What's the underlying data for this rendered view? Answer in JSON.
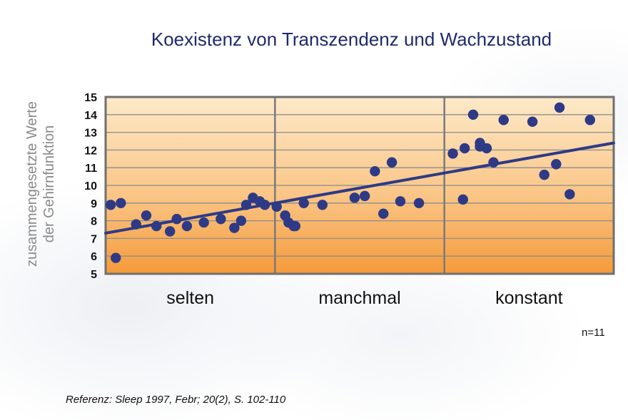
{
  "chart_data": {
    "type": "scatter",
    "title": "Koexistenz von Transzendenz und Wachzustand",
    "ylabel": [
      "zusammengesetzte Werte",
      "der Gehirnfunktion"
    ],
    "xlabel": "",
    "ylim": [
      5,
      15
    ],
    "yticks": [
      5,
      6,
      7,
      8,
      9,
      10,
      11,
      12,
      13,
      14,
      15
    ],
    "categories": [
      "selten",
      "manchmal",
      "konstant"
    ],
    "grid": true,
    "background": "orange-gradient",
    "point_color": "#2e3a86",
    "line_color": "#2e3a86",
    "series": [
      {
        "values": [
          [
            0.03,
            8.9
          ],
          [
            0.06,
            5.9
          ],
          [
            0.09,
            9.0
          ],
          [
            0.18,
            7.8
          ],
          [
            0.24,
            8.3
          ],
          [
            0.3,
            7.7
          ],
          [
            0.38,
            7.4
          ],
          [
            0.42,
            8.1
          ],
          [
            0.48,
            7.7
          ],
          [
            0.58,
            7.9
          ],
          [
            0.68,
            8.1
          ],
          [
            0.76,
            7.6
          ],
          [
            0.8,
            8.0
          ],
          [
            0.83,
            8.9
          ],
          [
            0.87,
            9.3
          ],
          [
            0.91,
            9.1
          ],
          [
            0.94,
            8.9
          ],
          [
            1.01,
            8.8
          ],
          [
            1.06,
            8.3
          ],
          [
            1.08,
            7.9
          ],
          [
            1.11,
            7.7
          ]
        ]
      },
      {
        "values": [
          [
            0.12,
            7.7
          ],
          [
            0.17,
            9.0
          ],
          [
            0.28,
            8.9
          ],
          [
            0.47,
            9.3
          ],
          [
            0.53,
            9.4
          ],
          [
            0.59,
            10.8
          ],
          [
            0.64,
            8.4
          ],
          [
            0.69,
            11.3
          ],
          [
            0.74,
            9.1
          ],
          [
            0.85,
            9.0
          ],
          [
            1.05,
            11.8
          ],
          [
            1.11,
            9.2
          ],
          [
            1.21,
            12.2
          ]
        ]
      },
      {
        "values": [
          [
            0.12,
            12.1
          ],
          [
            0.17,
            14.0
          ],
          [
            0.21,
            12.4
          ],
          [
            0.25,
            12.1
          ],
          [
            0.29,
            11.3
          ],
          [
            0.35,
            13.7
          ],
          [
            0.52,
            13.6
          ],
          [
            0.59,
            10.6
          ],
          [
            0.66,
            11.2
          ],
          [
            0.68,
            14.4
          ],
          [
            0.74,
            9.5
          ],
          [
            0.86,
            13.7
          ]
        ]
      }
    ],
    "trendline": {
      "from": [
        0.0,
        7.3
      ],
      "to": [
        3.0,
        12.4
      ]
    },
    "annotation": "n=11"
  },
  "reference": "Referenz: Sleep 1997, Febr; 20(2), S. 102-110"
}
